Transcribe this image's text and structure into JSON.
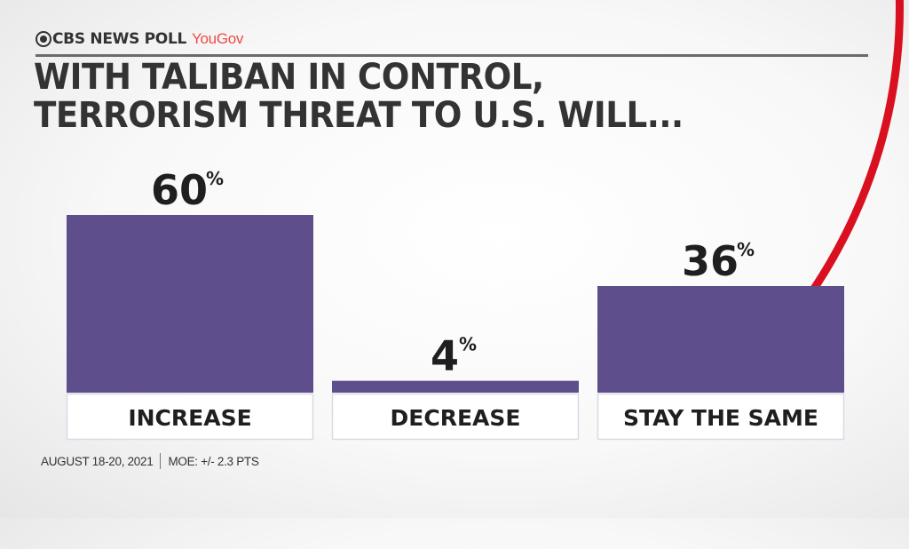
{
  "brand": {
    "network": "CBS NEWS POLL",
    "partner": "YouGov",
    "network_icon": "cbs-eye-icon"
  },
  "colors": {
    "bar": "#5e4f8c",
    "text": "#333333",
    "accent_red": "#d9101f",
    "yougov": "#ef4a4a"
  },
  "chart_data": {
    "type": "bar",
    "title": "WITH TALIBAN IN CONTROL, TERRORISM THREAT TO U.S. WILL...",
    "title_lines": [
      "WITH TALIBAN IN CONTROL,",
      "TERRORISM THREAT TO U.S. WILL..."
    ],
    "categories": [
      "INCREASE",
      "DECREASE",
      "STAY THE SAME"
    ],
    "values": [
      60,
      4,
      36
    ],
    "unit": "%",
    "xlabel": "",
    "ylabel": "",
    "ylim": [
      0,
      60
    ],
    "grid": false,
    "legend": "none"
  },
  "footer": {
    "date": "AUGUST 18-20, 2021",
    "moe": "MOE: +/- 2.3 PTS"
  }
}
